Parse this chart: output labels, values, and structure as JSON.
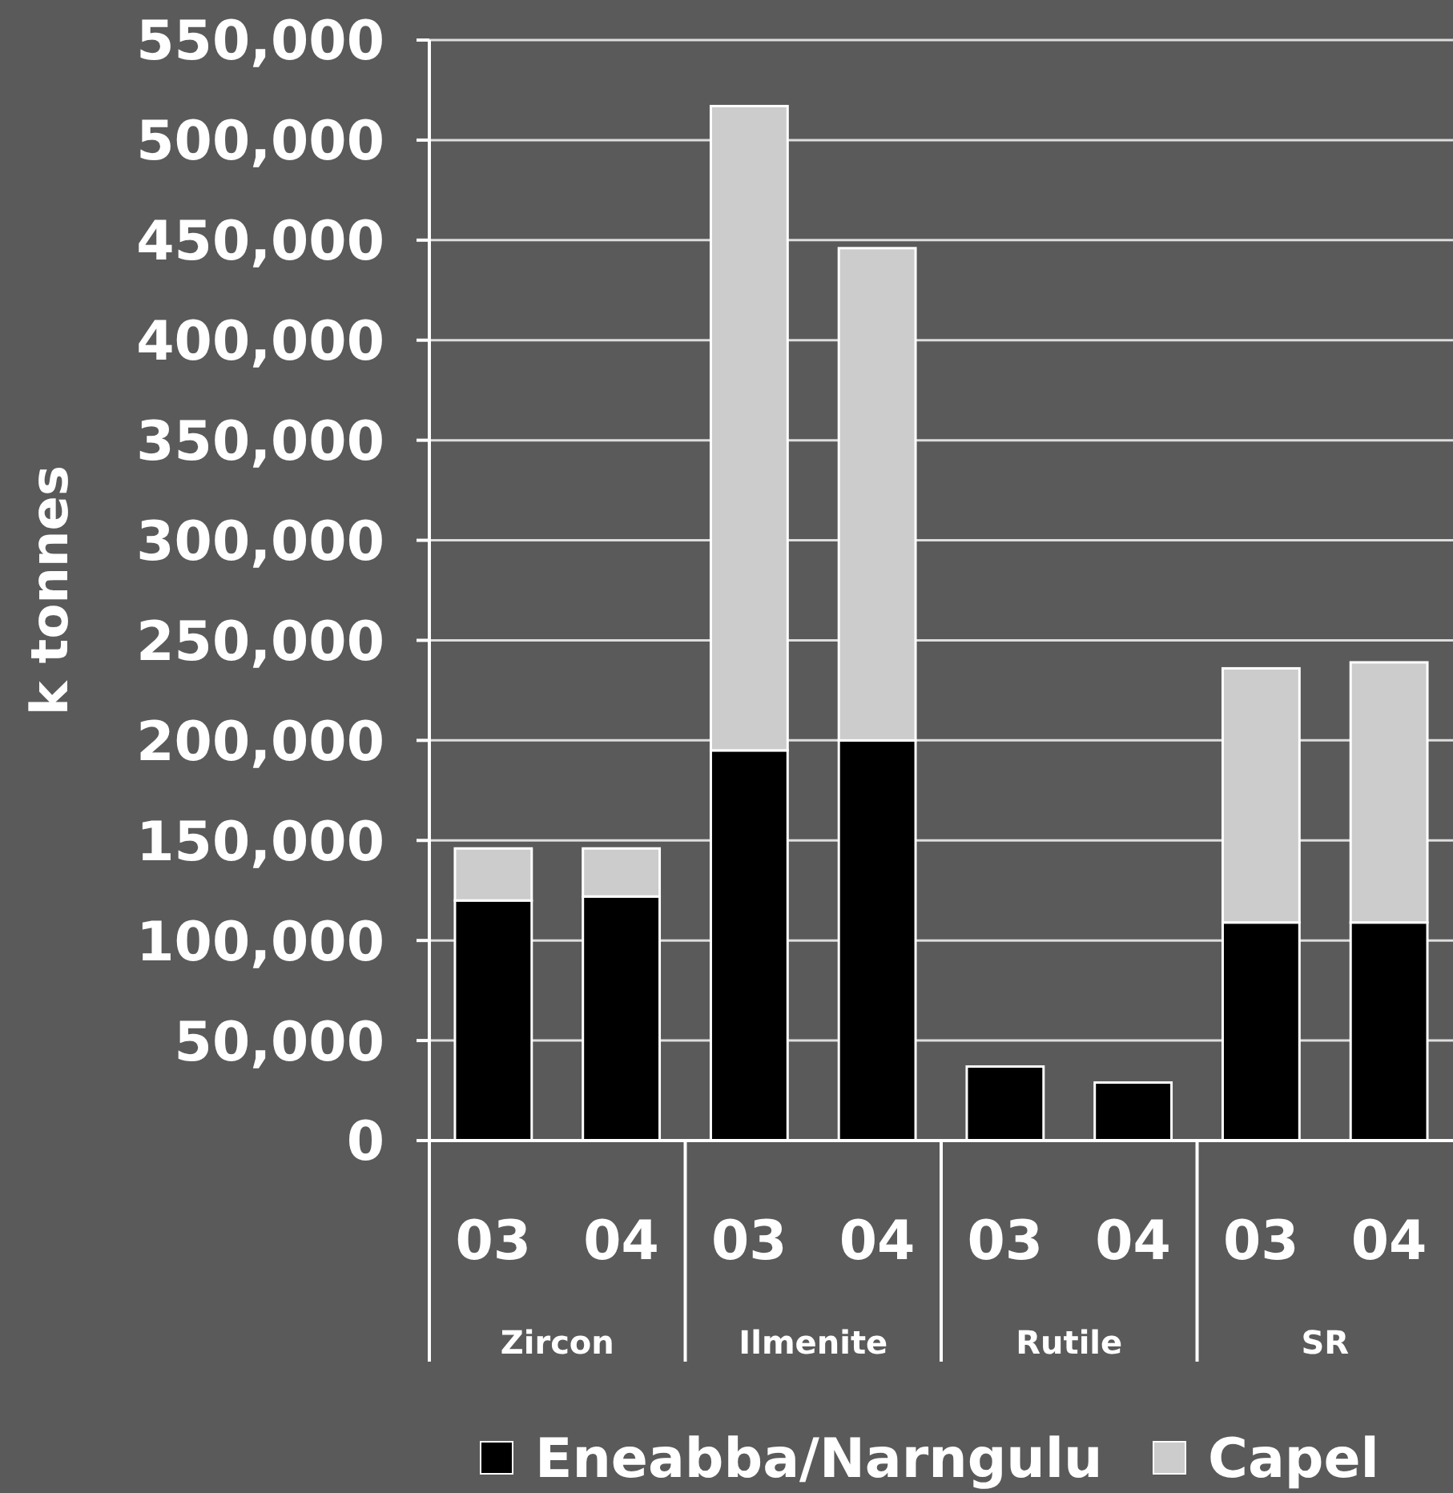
{
  "chart_data": {
    "type": "bar",
    "stacked": true,
    "categories": [
      "03",
      "04",
      "03",
      "04",
      "03",
      "04",
      "03",
      "04"
    ],
    "annotations": [
      "Zircon",
      "Ilmenite",
      "Rutile",
      "SR"
    ],
    "ylabel": "k tonnes",
    "series": [
      {
        "name": "Eneabba/Narngulu",
        "color": "#000000",
        "values": [
          120000,
          122000,
          195000,
          200000,
          37000,
          29000,
          109000,
          109000
        ]
      },
      {
        "name": "Capel",
        "color": "#cccccc",
        "values": [
          26000,
          24000,
          322000,
          246000,
          null,
          null,
          127000,
          130000
        ]
      }
    ],
    "ylim": [
      0,
      550000
    ],
    "yticks": [
      0,
      {
        "value": 50000,
        "label": "50,000"
      },
      {
        "value": 100000,
        "label": "100,000"
      },
      {
        "value": 150000,
        "label": "150,000"
      },
      {
        "value": 200000,
        "label": "200,000"
      },
      {
        "value": 250000,
        "label": "250,000"
      },
      {
        "value": 300000,
        "label": "300,000"
      },
      {
        "value": 350000,
        "label": "350,000"
      },
      {
        "value": 400000,
        "label": "400,000"
      },
      {
        "value": 450000,
        "label": "450,000"
      },
      {
        "value": 500000,
        "label": "500,000"
      },
      {
        "value": 550000,
        "label": "550,000"
      }
    ],
    "grid": "y",
    "legend": "bottom"
  }
}
